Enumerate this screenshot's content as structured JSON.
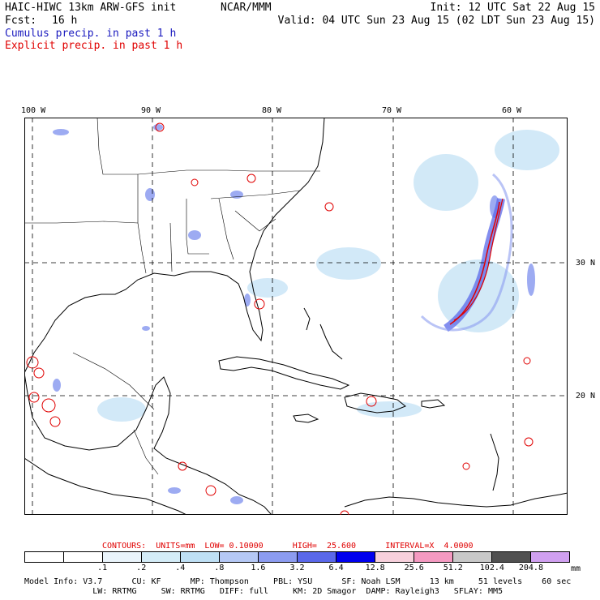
{
  "header": {
    "model": "HAIC-HIWC 13km ARW-GFS init",
    "org": "NCAR/MMM",
    "init": "Init: 12 UTC Sat 22 Aug 15",
    "fcst_label": "Fcst:",
    "fcst_value": "16 h",
    "valid": "Valid: 04 UTC Sun 23 Aug 15 (02 LDT Sun 23 Aug 15)",
    "cumulus": "Cumulus precip. in past 1 h",
    "explicit": "Explicit precip. in past 1 h"
  },
  "axes": {
    "lon_labels": [
      "100 W",
      "90 W",
      "80 W",
      "70 W",
      "60 W"
    ],
    "lat_labels": [
      "30 N",
      "20 N"
    ]
  },
  "contours": {
    "text": "CONTOURS:  UNITS=mm  LOW= 0.10000      HIGH=  25.600      INTERVAL=X  4.0000"
  },
  "scale": {
    "labels": [
      ".1",
      ".2",
      ".4",
      ".8",
      "1.6",
      "3.2",
      "6.4",
      "12.8",
      "25.6",
      "51.2",
      "102.4",
      "204.8"
    ],
    "units": "mm",
    "colors": [
      "#ffffff",
      "#ffffff",
      "#eaf4fb",
      "#d4ecf7",
      "#bfe0f5",
      "#b5c8f5",
      "#8c9cf0",
      "#5a68ea",
      "#0000ee",
      "#f7d0dc",
      "#f49ac1",
      "#c8c8c8",
      "#505050",
      "#d0a0f0"
    ]
  },
  "model_info": {
    "line1": "Model Info: V3.7      CU: KF      MP: Thompson     PBL: YSU      SF: Noah LSM      13 km     51 levels    60 sec",
    "line2": "              LW: RRTMG     SW: RRTMG   DIFF: full     KM: 2D Smagor  DAMP: Rayleigh3   SFLAY: MM5"
  }
}
